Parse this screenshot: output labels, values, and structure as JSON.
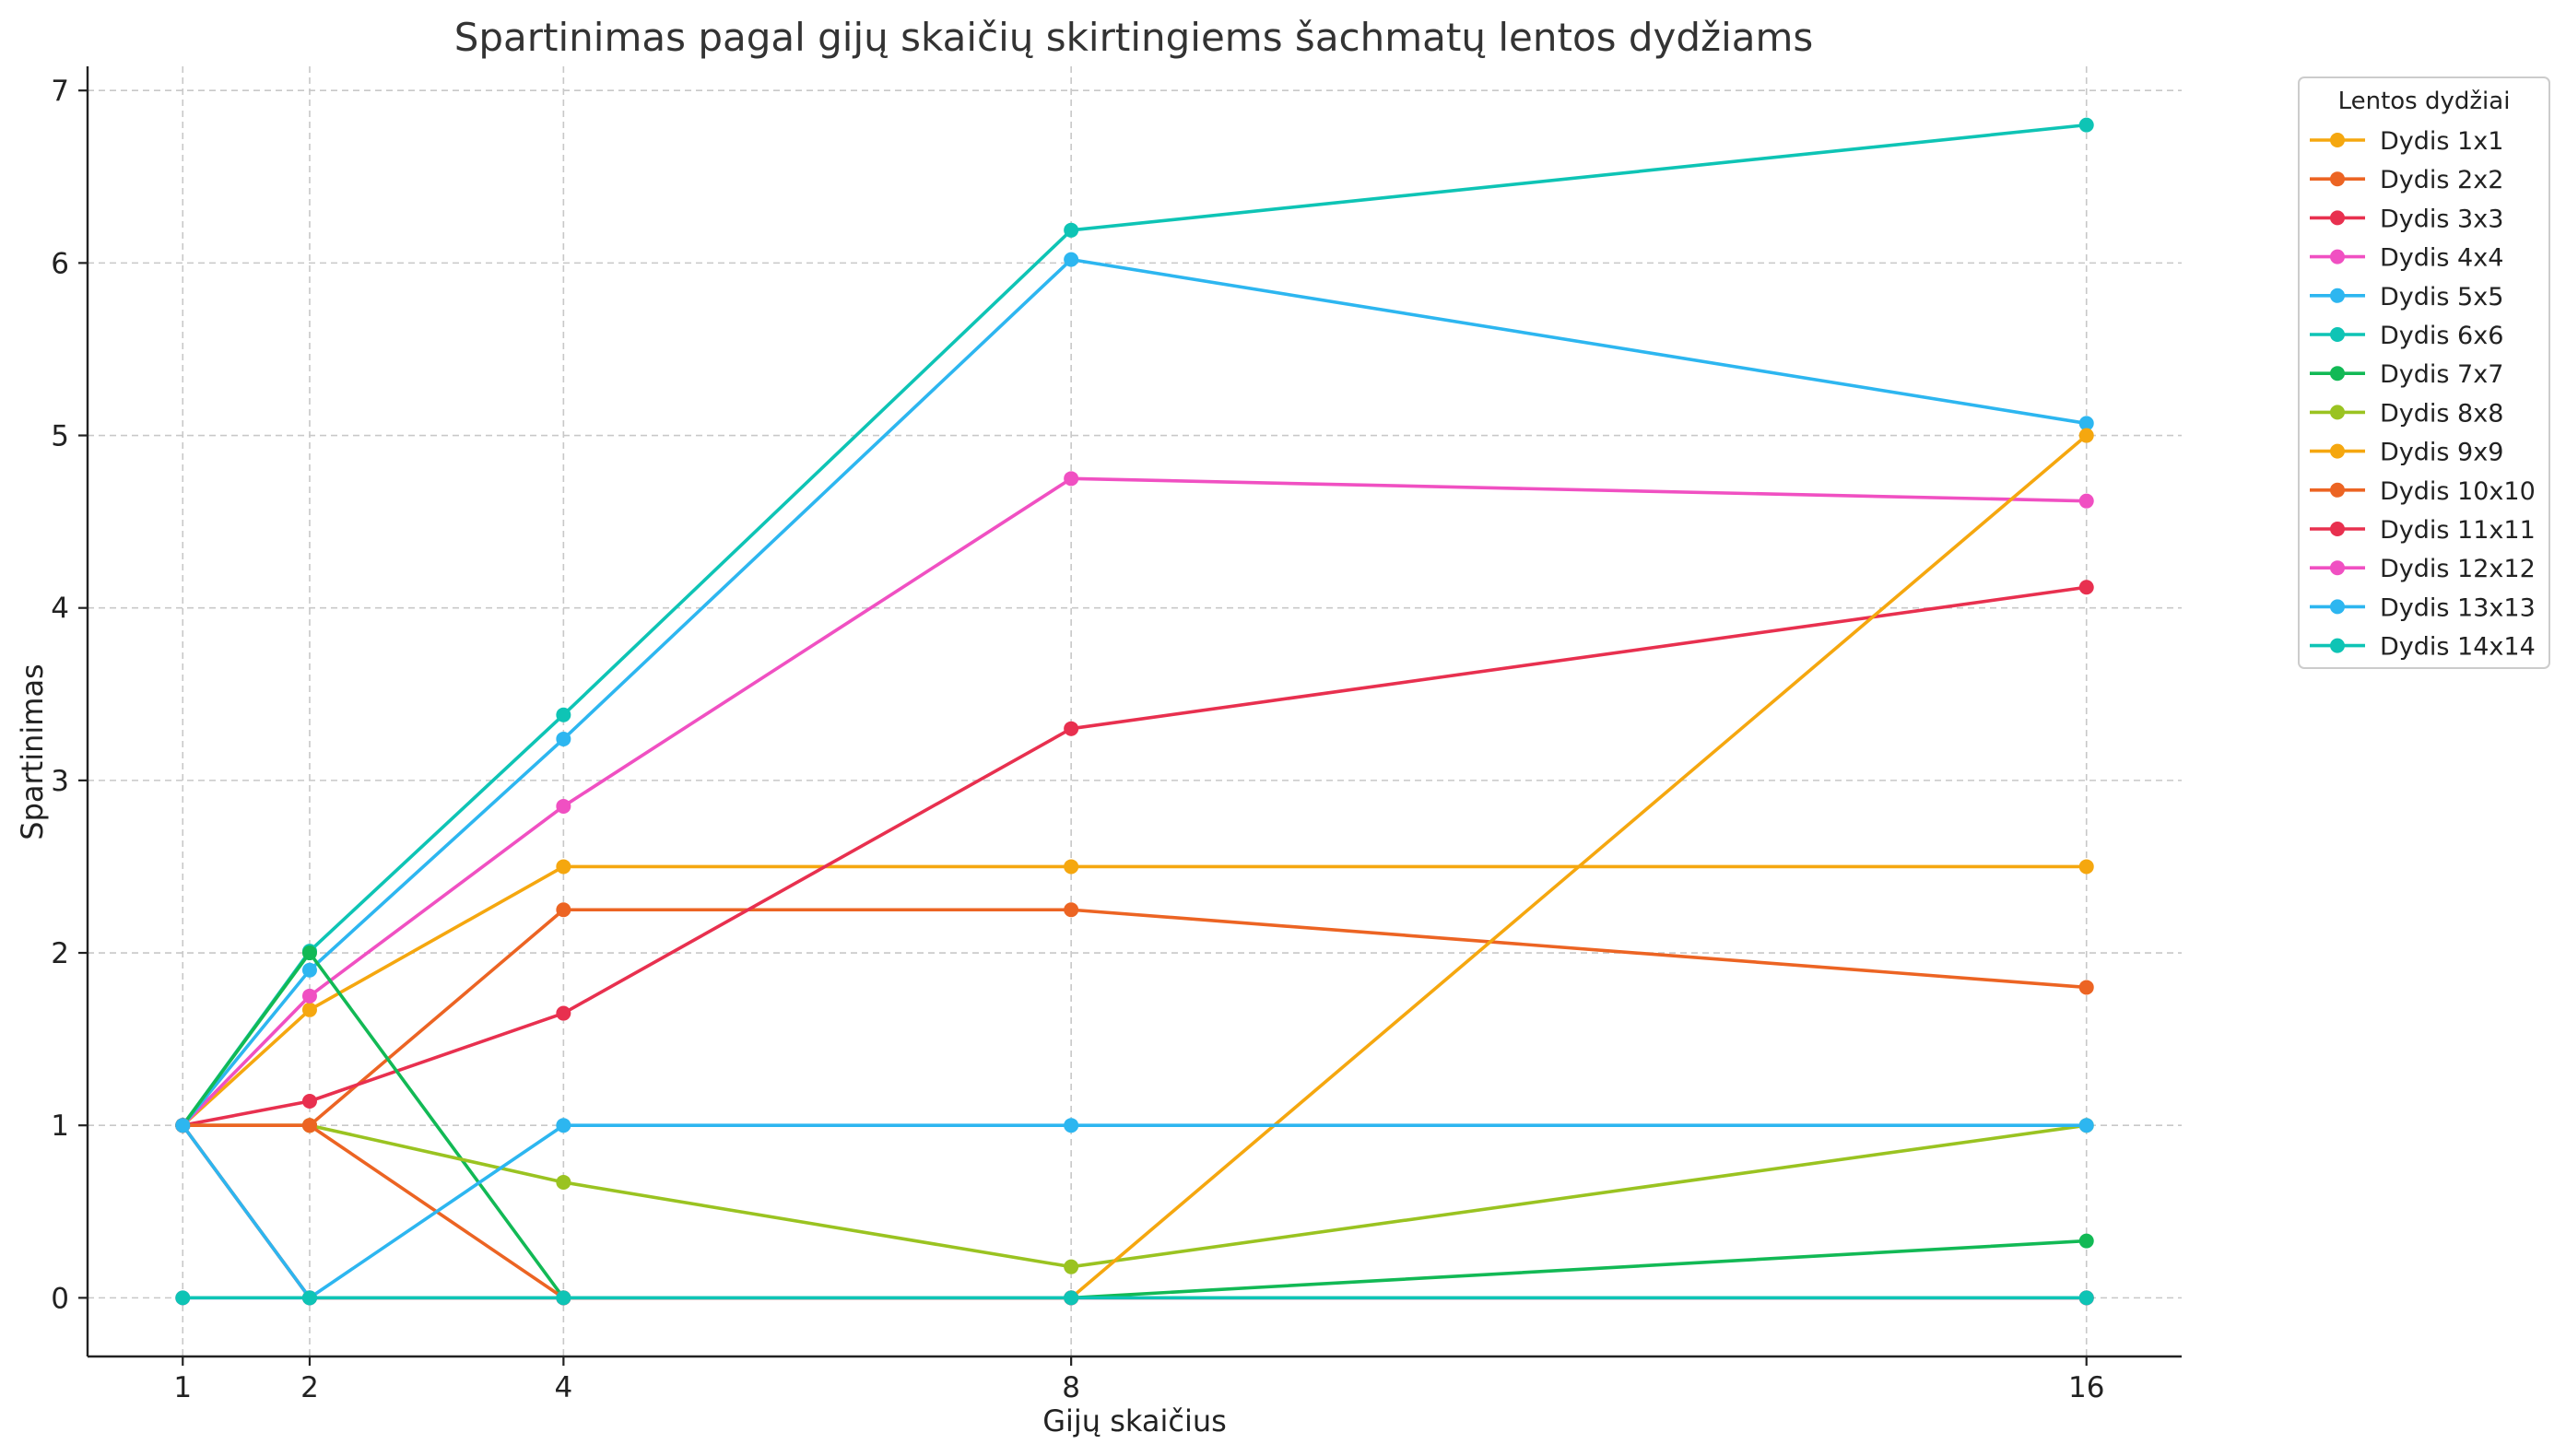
{
  "chart_data": {
    "type": "line",
    "title": "Spartinimas pagal gijų skaičių skirtingiems šachmatų lentos dydžiams",
    "xlabel": "Gijų skaičius",
    "ylabel": "Spartinimas",
    "x": [
      1,
      2,
      4,
      8,
      16
    ],
    "x_ticks": [
      "1",
      "2",
      "4",
      "8",
      "16"
    ],
    "y_ticks": [
      "0",
      "1",
      "2",
      "3",
      "4",
      "5",
      "6",
      "7"
    ],
    "xlim": [
      0.25,
      16.75
    ],
    "ylim": [
      -0.34,
      7.14
    ],
    "grid": true,
    "legend_title": "Lentos dydžiai",
    "legend_position": "outside-top-right",
    "series": [
      {
        "name": "Dydis 1x1",
        "color": "#f5a70f",
        "values": [
          1,
          1.67,
          2.5,
          2.5,
          2.5
        ]
      },
      {
        "name": "Dydis 2x2",
        "color": "#ec6423",
        "values": [
          1,
          1,
          2.25,
          2.25,
          1.8
        ]
      },
      {
        "name": "Dydis 3x3",
        "color": "#e8304f",
        "values": [
          1,
          1.14,
          1.65,
          3.3,
          4.12
        ]
      },
      {
        "name": "Dydis 4x4",
        "color": "#f050c2",
        "values": [
          1,
          1.75,
          2.85,
          4.75,
          4.62
        ]
      },
      {
        "name": "Dydis 5x5",
        "color": "#2db6f0",
        "values": [
          1,
          1.9,
          3.24,
          6.02,
          5.07
        ]
      },
      {
        "name": "Dydis 6x6",
        "color": "#0ec4b5",
        "values": [
          1,
          2.01,
          3.38,
          6.19,
          6.8
        ]
      },
      {
        "name": "Dydis 7x7",
        "color": "#12b955",
        "values": [
          1,
          2.0,
          0,
          0,
          0.33
        ]
      },
      {
        "name": "Dydis 8x8",
        "color": "#9ac321",
        "values": [
          1,
          1,
          0.67,
          0.18,
          1
        ]
      },
      {
        "name": "Dydis 9x9",
        "color": "#f5a70f",
        "values": [
          1,
          0,
          0,
          0,
          5.0
        ]
      },
      {
        "name": "Dydis 10x10",
        "color": "#ec6423",
        "values": [
          1,
          1,
          0,
          0,
          0
        ]
      },
      {
        "name": "Dydis 11x11",
        "color": "#e8304f",
        "values": [
          1,
          0,
          0,
          0,
          0
        ]
      },
      {
        "name": "Dydis 12x12",
        "color": "#f050c2",
        "values": [
          0,
          0,
          0,
          0,
          0
        ]
      },
      {
        "name": "Dydis 13x13",
        "color": "#2db6f0",
        "values": [
          1,
          0,
          1,
          1,
          1
        ]
      },
      {
        "name": "Dydis 14x14",
        "color": "#0ec4b5",
        "values": [
          0,
          0,
          0,
          0,
          0
        ]
      }
    ]
  }
}
